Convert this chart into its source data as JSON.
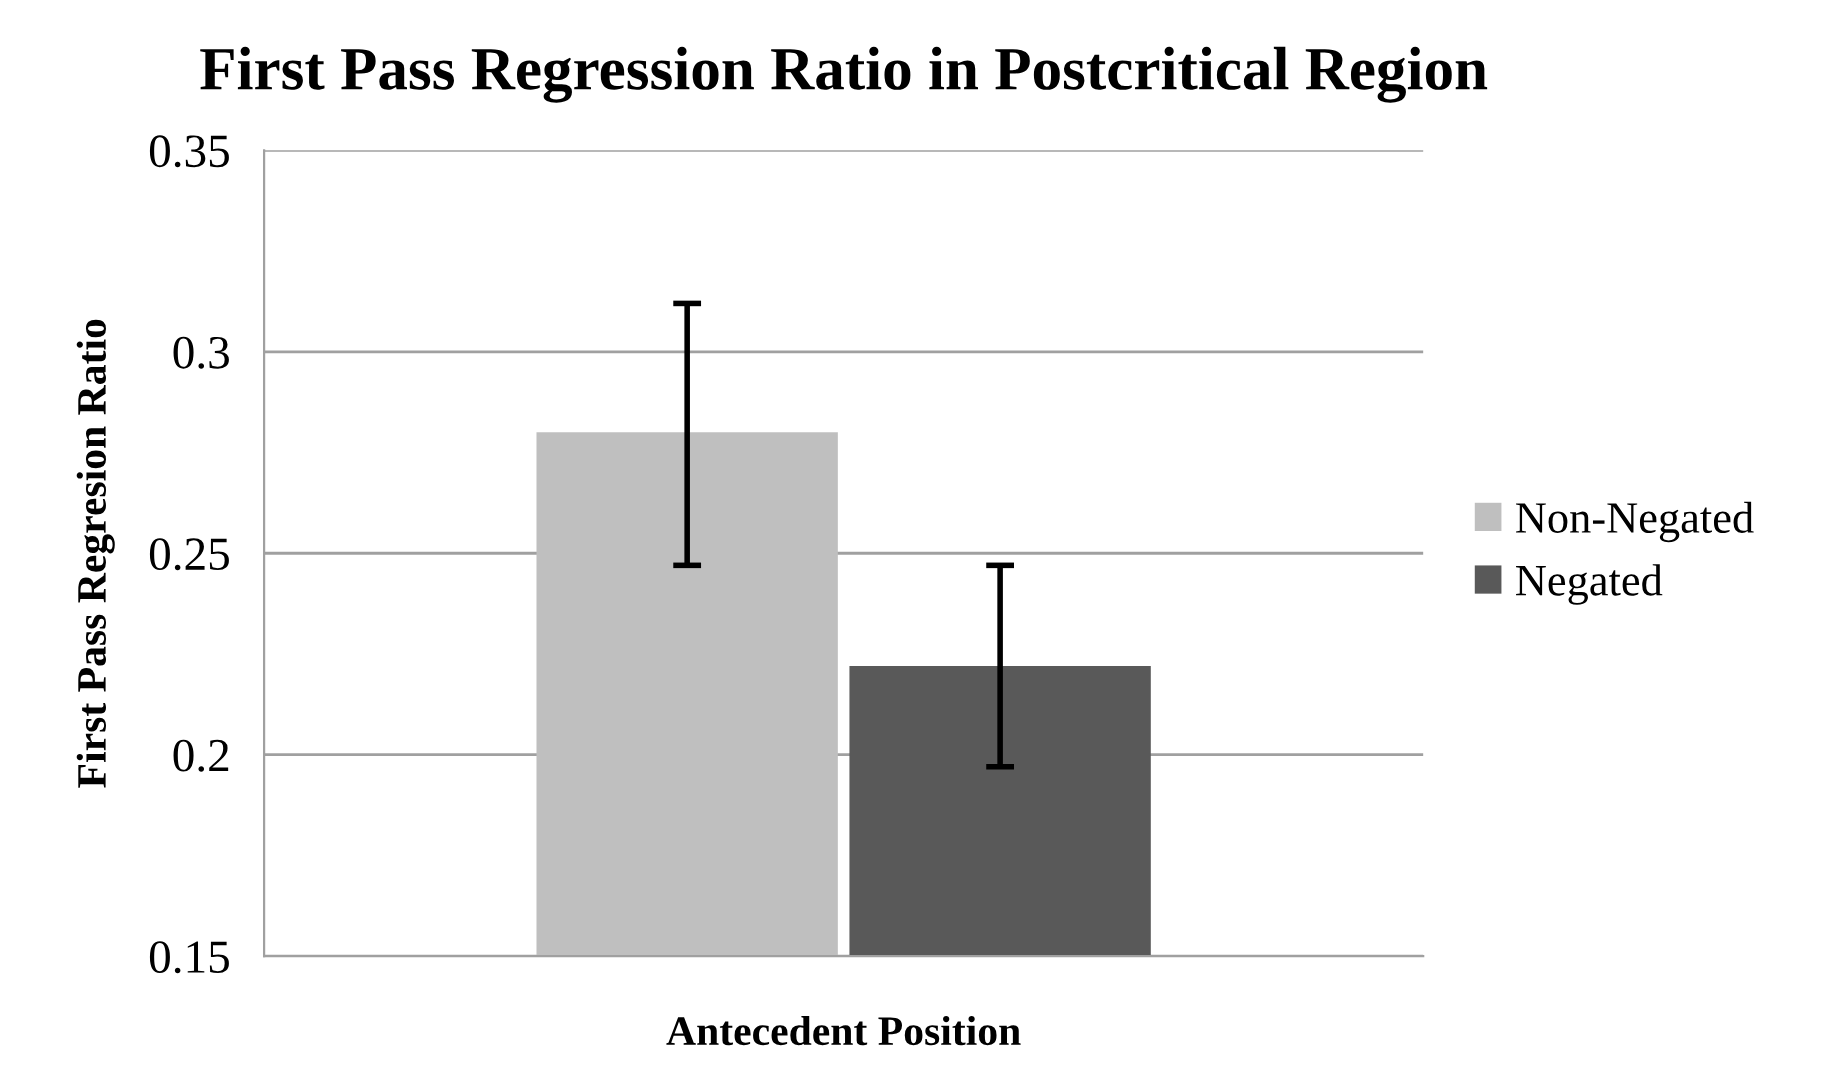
{
  "chart_data": {
    "type": "bar",
    "title": "First Pass Regression Ratio in Postcritical Region",
    "xlabel": "Antecedent Position",
    "ylabel": "First Pass Regresion Ratio",
    "categories": [
      null
    ],
    "series": [
      {
        "name": "Non-Negated",
        "color": "#bfbfbf",
        "values": [
          0.28
        ],
        "errors": [
          [
            0.247,
            0.312
          ]
        ]
      },
      {
        "name": "Negated",
        "color": "#595959",
        "values": [
          0.222
        ],
        "errors": [
          [
            0.197,
            0.247
          ]
        ]
      }
    ],
    "ylim": [
      0.15,
      0.35
    ],
    "yticks": [
      0.15,
      0.2,
      0.25,
      0.3,
      0.35
    ],
    "grid": "y",
    "legend": "right"
  }
}
